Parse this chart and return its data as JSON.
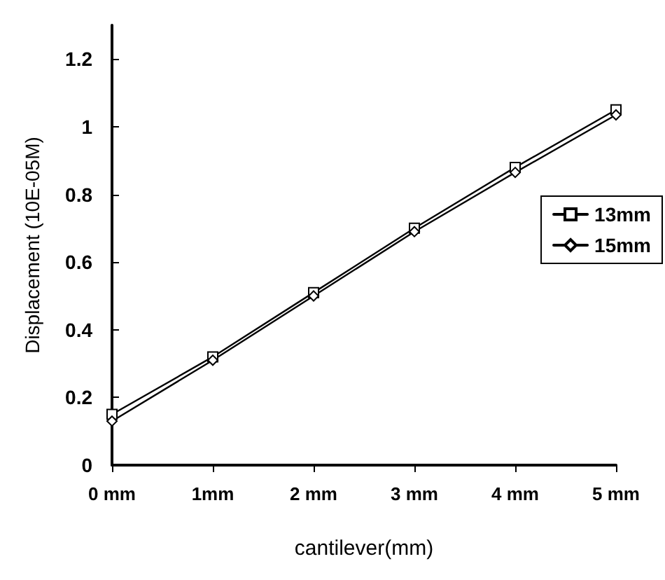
{
  "chart_data": {
    "type": "line",
    "xlabel": "cantilever(mm)",
    "ylabel": "Displacement (10E-05M)",
    "categories": [
      "0 mm",
      "1mm",
      "2 mm",
      "3 mm",
      "4 mm",
      "5 mm"
    ],
    "series": [
      {
        "name": "13mm",
        "color": "#000000",
        "marker": "square",
        "values": [
          0.15,
          0.32,
          0.51,
          0.7,
          0.88,
          1.05
        ]
      },
      {
        "name": "15mm",
        "color": "#000000",
        "marker": "diamond",
        "values": [
          0.13,
          0.31,
          0.5,
          0.69,
          0.865,
          1.035
        ]
      }
    ],
    "ylim": [
      0,
      1.3
    ],
    "yticks": [
      0,
      0.2,
      0.4,
      0.6,
      0.8,
      1,
      1.2
    ],
    "grid": false,
    "legend": "right",
    "line_style": "solid"
  }
}
